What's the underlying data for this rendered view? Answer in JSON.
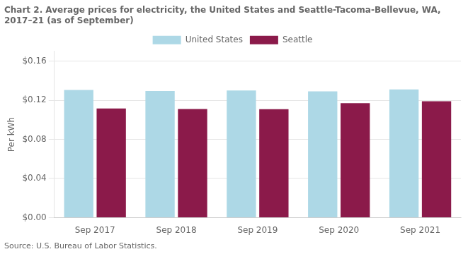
{
  "chart_data": {
    "type": "bar",
    "title": "Chart 2. Average prices for electricity, the United States and Seattle-Tacoma-Bellevue, WA,\n2017–21 (as of September)",
    "y_label": "Per kWh",
    "source": "Source: U.S. Bureau of Labor Statistics.",
    "categories": [
      "Sep 2017",
      "Sep 2018",
      "Sep 2019",
      "Sep 2020",
      "Sep 2021"
    ],
    "series": [
      {
        "name": "United States",
        "color": "#add8e6",
        "values": [
          0.1305,
          0.1295,
          0.13,
          0.129,
          0.131
        ]
      },
      {
        "name": "Seattle",
        "color": "#8b1a4a",
        "values": [
          0.1115,
          0.111,
          0.1108,
          0.117,
          0.119
        ]
      }
    ],
    "ylim": [
      0,
      0.17
    ],
    "yticks": [
      {
        "value": 0.0,
        "label": "$0.00"
      },
      {
        "value": 0.04,
        "label": "$0.04"
      },
      {
        "value": 0.08,
        "label": "$0.08"
      },
      {
        "value": 0.12,
        "label": "$0.12"
      },
      {
        "value": 0.16,
        "label": "$0.16"
      }
    ],
    "grid": true,
    "legend": "top"
  }
}
